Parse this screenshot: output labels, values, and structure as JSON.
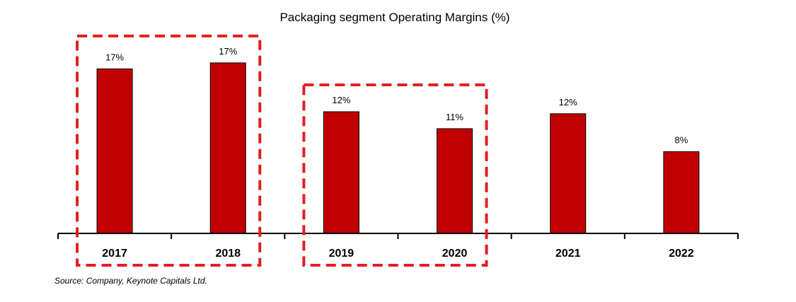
{
  "chart_data": {
    "type": "bar",
    "title": "Packaging segment Operating Margins (%)",
    "categories": [
      "2017",
      "2018",
      "2019",
      "2020",
      "2021",
      "2022"
    ],
    "values": [
      16.5,
      17.1,
      12.2,
      10.5,
      12.0,
      8.2
    ],
    "data_labels": [
      "17%",
      "17%",
      "12%",
      "11%",
      "12%",
      "8%"
    ],
    "unit": "%",
    "ylim": [
      0,
      20
    ],
    "grid": false,
    "legend": "none",
    "bar_color": "#c00000",
    "bar_outline_color": "#000000",
    "highlight_color": "#e31e24",
    "highlight_groups": [
      [
        "2017",
        "2018"
      ],
      [
        "2019",
        "2020"
      ]
    ]
  },
  "source_note": "Source: Company, Keynote Capitals Ltd."
}
